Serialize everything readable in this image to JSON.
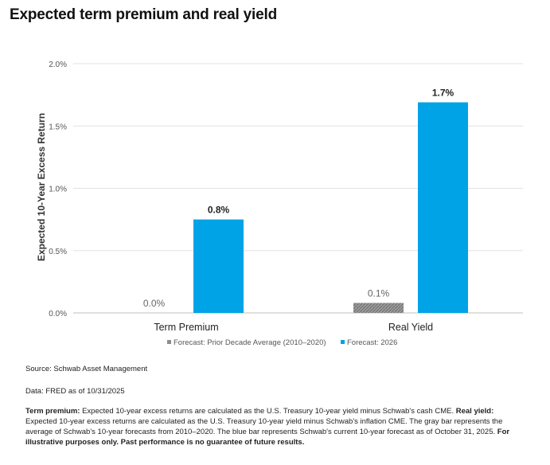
{
  "page": {
    "title": "Expected term premium and real yield"
  },
  "chart_data": {
    "type": "bar",
    "title": "",
    "xlabel": "",
    "ylabel": "Expected 10-Year Excess Return",
    "categories": [
      "Term Premium",
      "Real Yield"
    ],
    "series": [
      {
        "name": "Forecast: Prior Decade Average (2010–2020)",
        "values": [
          0.0,
          0.08
        ],
        "labels": [
          "0.0%",
          "0.1%"
        ],
        "color": "#8c8c8c",
        "pattern": "hatched"
      },
      {
        "name": "Forecast: 2026",
        "values": [
          0.75,
          1.69
        ],
        "labels": [
          "0.8%",
          "1.7%"
        ],
        "color": "#00a3e6"
      }
    ],
    "ylim": [
      0,
      2.0
    ],
    "y_ticks": [
      "0.0%",
      "0.5%",
      "1.0%",
      "1.5%",
      "2.0%"
    ],
    "y_tick_values": [
      0,
      0.5,
      1.0,
      1.5,
      2.0
    ],
    "grid": true,
    "legend": "bottom"
  },
  "notes": {
    "source": "Source: Schwab Asset Management",
    "data": "Data: FRED as of 10/31/2025",
    "term_premium_label": "Term premium:",
    "term_premium_text": " Expected 10-year excess returns are calculated as the U.S. Treasury 10-year yield minus Schwab's cash CME. ",
    "real_yield_label": "Real yield:",
    "real_yield_text": " Expected 10-year excess returns are calculated as the U.S. Treasury 10-year yield minus Schwab's inflation CME. The gray bar represents the average of Schwab's 10-year forecasts from 2010–2020. The blue bar represents Schwab's current 10-year forecast as of October 31, 2025. ",
    "disclaimer": "For illustrative purposes only. Past performance is no guarantee of future results."
  }
}
